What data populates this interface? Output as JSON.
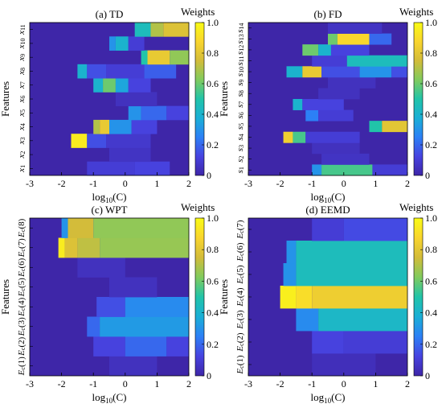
{
  "colormap": [
    "#3e26a8",
    "#4743e0",
    "#2c80f6",
    "#1aafd6",
    "#21c4a9",
    "#80cb5e",
    "#d3bc3a",
    "#f9d52e",
    "#f9fb15"
  ],
  "chart_data": [
    {
      "type": "heatmap",
      "title": "(a) TD",
      "colorbar_label": "Weights",
      "xlabel_base": "log",
      "xlabel_sub": "10",
      "xlabel_tail": "(C)",
      "ylabel": "Features",
      "xlim": [
        -3,
        2
      ],
      "xticks": [
        "-3",
        "-2",
        "-1",
        "0",
        "1",
        "2"
      ],
      "cbar_ticks": [
        "0",
        "0.2",
        "0.4",
        "0.6",
        "0.8",
        "1.0"
      ],
      "ylabels": [
        {
          "m": "x",
          "s": "1"
        },
        {
          "m": "x",
          "s": "2"
        },
        {
          "m": "x",
          "s": "3"
        },
        {
          "m": "x",
          "s": "4"
        },
        {
          "m": "x",
          "s": "5"
        },
        {
          "m": "x",
          "s": "6"
        },
        {
          "m": "x",
          "s": "7"
        },
        {
          "m": "x",
          "s": "8"
        },
        {
          "m": "x",
          "s": "9"
        },
        {
          "m": "x",
          "s": "10"
        },
        {
          "m": "x",
          "s": "11"
        }
      ],
      "rows": [
        {
          "segments": [
            {
              "x0": -1.2,
              "x1": 0.3,
              "v": 0.1
            },
            {
              "x0": 0.3,
              "x1": 1.4,
              "v": 0.12
            }
          ]
        },
        {
          "segments": [
            {
              "x0": -0.5,
              "x1": 0.8,
              "v": 0.06
            }
          ]
        },
        {
          "segments": [
            {
              "x0": -1.7,
              "x1": -1.2,
              "v": 0.95
            },
            {
              "x0": -1.2,
              "x1": -0.6,
              "v": 0.15
            },
            {
              "x0": -0.6,
              "x1": 0.8,
              "v": 0.08
            }
          ]
        },
        {
          "segments": [
            {
              "x0": -1.0,
              "x1": -0.8,
              "v": 0.7
            },
            {
              "x0": -0.8,
              "x1": -0.5,
              "v": 0.82
            },
            {
              "x0": -0.5,
              "x1": 0.2,
              "v": 0.3
            },
            {
              "x0": 0.2,
              "x1": 1.0,
              "v": 0.12
            }
          ]
        },
        {
          "segments": [
            {
              "x0": 0.1,
              "x1": 0.5,
              "v": 0.3
            },
            {
              "x0": 0.5,
              "x1": 1.3,
              "v": 0.2
            },
            {
              "x0": 1.3,
              "x1": 2,
              "v": 0.12
            }
          ]
        },
        {
          "segments": [
            {
              "x0": -0.3,
              "x1": 1.0,
              "v": 0.05
            }
          ]
        },
        {
          "segments": [
            {
              "x0": -1.0,
              "x1": -0.7,
              "v": 0.4
            },
            {
              "x0": -0.7,
              "x1": -0.3,
              "v": 0.6
            },
            {
              "x0": -0.3,
              "x1": 0.1,
              "v": 0.35
            },
            {
              "x0": 0.1,
              "x1": 0.8,
              "v": 0.12
            }
          ]
        },
        {
          "segments": [
            {
              "x0": -1.5,
              "x1": -1.2,
              "v": 0.4
            },
            {
              "x0": -1.2,
              "x1": -0.6,
              "v": 0.15
            },
            {
              "x0": -0.6,
              "x1": 0.6,
              "v": 0.1
            },
            {
              "x0": 0.6,
              "x1": 1.6,
              "v": 0.18
            }
          ]
        },
        {
          "segments": [
            {
              "x0": 0.5,
              "x1": 0.7,
              "v": 0.5
            },
            {
              "x0": 0.7,
              "x1": 1.4,
              "v": 0.82
            },
            {
              "x0": 1.4,
              "x1": 2,
              "v": 0.65
            }
          ]
        },
        {
          "segments": [
            {
              "x0": -0.5,
              "x1": -0.3,
              "v": 0.3
            },
            {
              "x0": -0.3,
              "x1": 0.1,
              "v": 0.4
            },
            {
              "x0": 0.1,
              "x1": 0.6,
              "v": 0.1
            }
          ]
        },
        {
          "segments": [
            {
              "x0": 0.3,
              "x1": 0.8,
              "v": 0.45
            },
            {
              "x0": 0.8,
              "x1": 1.2,
              "v": 0.7
            },
            {
              "x0": 1.2,
              "x1": 2,
              "v": 0.78
            }
          ]
        }
      ]
    },
    {
      "type": "heatmap",
      "title": "(b) FD",
      "colorbar_label": "Weights",
      "xlabel_base": "log",
      "xlabel_sub": "10",
      "xlabel_tail": "(C)",
      "ylabel": "Features",
      "xlim": [
        -3,
        2
      ],
      "xticks": [
        "-3",
        "-2",
        "-1",
        "0",
        "1",
        "2"
      ],
      "cbar_ticks": [
        "0",
        "0.2",
        "0.4",
        "0.6",
        "0.8",
        "1.0"
      ],
      "ylabels": [
        {
          "m": "s",
          "s": "1"
        },
        {
          "m": "s",
          "s": "2"
        },
        {
          "m": "s",
          "s": "3"
        },
        {
          "m": "s",
          "s": "4"
        },
        {
          "m": "s",
          "s": "5"
        },
        {
          "m": "s",
          "s": "6"
        },
        {
          "m": "s",
          "s": "7"
        },
        {
          "m": "s",
          "s": "8"
        },
        {
          "m": "s",
          "s": "9"
        },
        {
          "m": "s",
          "s": "10"
        },
        {
          "m": "s",
          "s": "11"
        },
        {
          "m": "s",
          "s": "12"
        },
        {
          "m": "s",
          "s": "13"
        },
        {
          "m": "s",
          "s": "14"
        }
      ],
      "rows": [
        {
          "segments": [
            {
              "x0": -1.0,
              "x1": -0.7,
              "v": 0.3
            },
            {
              "x0": -0.7,
              "x1": 0.9,
              "v": 0.55
            },
            {
              "x0": 0.9,
              "x1": 2,
              "v": 0.1
            }
          ]
        },
        {
          "segments": [
            {
              "x0": -0.7,
              "x1": 0.8,
              "v": 0.06
            }
          ]
        },
        {
          "segments": [
            {
              "x0": -1.0,
              "x1": 0.5,
              "v": 0.05
            }
          ]
        },
        {
          "segments": [
            {
              "x0": -1.9,
              "x1": -1.6,
              "v": 0.85
            },
            {
              "x0": -1.6,
              "x1": -1.2,
              "v": 0.55
            },
            {
              "x0": -1.2,
              "x1": 0.5,
              "v": 0.1
            }
          ]
        },
        {
          "segments": [
            {
              "x0": 0.8,
              "x1": 1.2,
              "v": 0.5
            },
            {
              "x0": 1.2,
              "x1": 2,
              "v": 0.8
            }
          ]
        },
        {
          "segments": [
            {
              "x0": -1.2,
              "x1": -0.8,
              "v": 0.25
            },
            {
              "x0": -0.8,
              "x1": 0.3,
              "v": 0.1
            }
          ]
        },
        {
          "segments": [
            {
              "x0": -1.6,
              "x1": -1.3,
              "v": 0.4
            },
            {
              "x0": -1.3,
              "x1": 0.0,
              "v": 0.12
            }
          ]
        },
        {
          "segments": [
            {
              "x0": -0.8,
              "x1": 0.5,
              "v": 0.05
            }
          ]
        },
        {
          "segments": [
            {
              "x0": -0.5,
              "x1": 1.0,
              "v": 0.05
            }
          ]
        },
        {
          "segments": [
            {
              "x0": -1.8,
              "x1": -1.3,
              "v": 0.4
            },
            {
              "x0": -1.3,
              "x1": -0.7,
              "v": 0.82
            },
            {
              "x0": -0.7,
              "x1": 0.5,
              "v": 0.15
            },
            {
              "x0": 0.5,
              "x1": 1.5,
              "v": 0.3
            },
            {
              "x0": 1.5,
              "x1": 2,
              "v": 0.15
            }
          ]
        },
        {
          "segments": [
            {
              "x0": -1.0,
              "x1": 0.1,
              "v": 0.1
            },
            {
              "x0": 0.1,
              "x1": 2,
              "v": 0.45
            }
          ]
        },
        {
          "segments": [
            {
              "x0": -1.3,
              "x1": -0.8,
              "v": 0.6
            },
            {
              "x0": -0.8,
              "x1": -0.4,
              "v": 0.4
            },
            {
              "x0": -0.4,
              "x1": 0.8,
              "v": 0.12
            }
          ]
        },
        {
          "segments": [
            {
              "x0": -0.5,
              "x1": -0.2,
              "v": 0.6
            },
            {
              "x0": -0.2,
              "x1": 0.8,
              "v": 0.88
            },
            {
              "x0": 0.8,
              "x1": 1.5,
              "v": 0.2
            }
          ]
        },
        {
          "segments": [
            {
              "x0": -0.5,
              "x1": 1.2,
              "v": 0.06
            }
          ]
        }
      ]
    },
    {
      "type": "heatmap",
      "title": "(c) WPT",
      "colorbar_label": "Weights",
      "xlabel_base": "log",
      "xlabel_sub": "10",
      "xlabel_tail": "(C)",
      "ylabel": "Features",
      "xlim": [
        -3,
        2
      ],
      "xticks": [
        "-3",
        "-2",
        "-1",
        "0",
        "1",
        "2"
      ],
      "cbar_ticks": [
        "0",
        "0.2",
        "0.4",
        "0.6",
        "0.8",
        "1.0"
      ],
      "ylabels": [
        {
          "m": "E",
          "s": "c",
          "p": "(1)"
        },
        {
          "m": "E",
          "s": "c",
          "p": "(2)"
        },
        {
          "m": "E",
          "s": "c",
          "p": "(3)"
        },
        {
          "m": "E",
          "s": "c",
          "p": "(4)"
        },
        {
          "m": "E",
          "s": "c",
          "p": "(5)"
        },
        {
          "m": "E",
          "s": "c",
          "p": "(6)"
        },
        {
          "m": "E",
          "s": "c",
          "p": "(7)"
        },
        {
          "m": "E",
          "s": "c",
          "p": "(8)"
        }
      ],
      "rows": [
        {
          "segments": [
            {
              "x0": -0.5,
              "x1": 1.0,
              "v": 0.05
            }
          ]
        },
        {
          "segments": [
            {
              "x0": -1.0,
              "x1": 0.0,
              "v": 0.12
            },
            {
              "x0": 0.0,
              "x1": 1.3,
              "v": 0.2
            },
            {
              "x0": 1.3,
              "x1": 2,
              "v": 0.12
            }
          ]
        },
        {
          "segments": [
            {
              "x0": -1.2,
              "x1": -0.8,
              "v": 0.2
            },
            {
              "x0": -0.8,
              "x1": 2,
              "v": 0.32
            }
          ]
        },
        {
          "segments": [
            {
              "x0": -0.9,
              "x1": 0.0,
              "v": 0.15
            },
            {
              "x0": 0.0,
              "x1": 2,
              "v": 0.28
            }
          ]
        },
        {
          "segments": [
            {
              "x0": -0.5,
              "x1": 1.0,
              "v": 0.05
            }
          ]
        },
        {
          "segments": [
            {
              "x0": -1.5,
              "x1": 0.0,
              "v": 0.05
            }
          ]
        },
        {
          "segments": [
            {
              "x0": -2.1,
              "x1": -1.9,
              "v": 0.95
            },
            {
              "x0": -1.9,
              "x1": -1.5,
              "v": 0.78
            },
            {
              "x0": -1.5,
              "x1": -0.8,
              "v": 0.72
            },
            {
              "x0": -0.8,
              "x1": 2,
              "v": 0.66
            }
          ]
        },
        {
          "segments": [
            {
              "x0": -2.0,
              "x1": -1.8,
              "v": 0.3
            },
            {
              "x0": -1.8,
              "x1": -1.0,
              "v": 0.75
            },
            {
              "x0": -1.0,
              "x1": 2,
              "v": 0.65
            }
          ]
        }
      ]
    },
    {
      "type": "heatmap",
      "title": "(d) EEMD",
      "colorbar_label": "Weights",
      "xlabel_base": "log",
      "xlabel_sub": "10",
      "xlabel_tail": "(C)",
      "ylabel": "Features",
      "xlim": [
        -3,
        2
      ],
      "xticks": [
        "-3",
        "-2",
        "-1",
        "0",
        "1",
        "2"
      ],
      "cbar_ticks": [
        "0",
        "0.2",
        "0.4",
        "0.6",
        "0.8",
        "1.0"
      ],
      "ylabels": [
        {
          "m": "E",
          "s": "c",
          "p": "(1)"
        },
        {
          "m": "E",
          "s": "c",
          "p": "(2)"
        },
        {
          "m": "E",
          "s": "c",
          "p": "(3)"
        },
        {
          "m": "E",
          "s": "c",
          "p": "(4)"
        },
        {
          "m": "E",
          "s": "c",
          "p": "(5)"
        },
        {
          "m": "E",
          "s": "c",
          "p": "(6)"
        },
        {
          "m": "E",
          "s": "c",
          "p": "(7)"
        }
      ],
      "rows": [
        {
          "segments": [
            {
              "x0": -1.0,
              "x1": 1.0,
              "v": 0.04
            }
          ]
        },
        {
          "segments": [
            {
              "x0": -1.0,
              "x1": 0.0,
              "v": 0.12
            },
            {
              "x0": 0.0,
              "x1": 2,
              "v": 0.1
            }
          ]
        },
        {
          "segments": [
            {
              "x0": -1.5,
              "x1": -0.8,
              "v": 0.28
            },
            {
              "x0": -0.8,
              "x1": 2,
              "v": 0.42
            }
          ]
        },
        {
          "segments": [
            {
              "x0": -2.0,
              "x1": -1.5,
              "v": 0.96
            },
            {
              "x0": -1.5,
              "x1": -1.0,
              "v": 0.9
            },
            {
              "x0": -1.0,
              "x1": 2,
              "v": 0.84
            }
          ]
        },
        {
          "segments": [
            {
              "x0": -1.9,
              "x1": -1.5,
              "v": 0.3
            },
            {
              "x0": -1.5,
              "x1": 2,
              "v": 0.45
            }
          ]
        },
        {
          "segments": [
            {
              "x0": -1.8,
              "x1": -1.5,
              "v": 0.3
            },
            {
              "x0": -1.5,
              "x1": 2,
              "v": 0.45
            }
          ]
        },
        {
          "segments": [
            {
              "x0": -1.0,
              "x1": 0.0,
              "v": 0.1
            },
            {
              "x0": 0.0,
              "x1": 2,
              "v": 0.14
            }
          ]
        }
      ]
    }
  ]
}
